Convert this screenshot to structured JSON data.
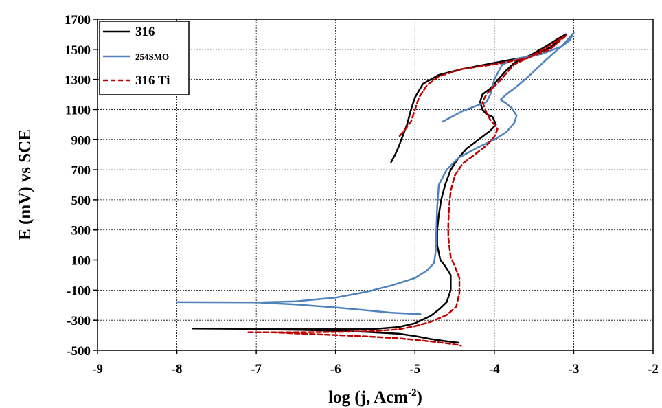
{
  "chart_data": {
    "type": "line",
    "xlabel": "log (j, Acm",
    "xlabel_sup": "-2",
    "xlabel_close": ")",
    "ylabel": "E (mV) vs SCE",
    "xlim": [
      -9,
      -2
    ],
    "ylim": [
      -500,
      1700
    ],
    "xticks": [
      "-9",
      "-8",
      "-7",
      "-6",
      "-5",
      "-4",
      "-3",
      "-2"
    ],
    "yticks": [
      "-500",
      "-300",
      "-100",
      "100",
      "300",
      "500",
      "700",
      "900",
      "1100",
      "1300",
      "1500",
      "1700"
    ],
    "grid": true,
    "legend_position": "top-left",
    "series": [
      {
        "name": "316",
        "color": "#000000",
        "dash": "solid",
        "points": [
          [
            -7.8,
            -355
          ],
          [
            -7.0,
            -358
          ],
          [
            -6.0,
            -360
          ],
          [
            -5.5,
            -358
          ],
          [
            -5.2,
            -345
          ],
          [
            -5.0,
            -320
          ],
          [
            -4.8,
            -270
          ],
          [
            -4.7,
            -230
          ],
          [
            -4.6,
            -180
          ],
          [
            -4.55,
            -100
          ],
          [
            -4.55,
            0
          ],
          [
            -4.62,
            60
          ],
          [
            -4.68,
            100
          ],
          [
            -4.72,
            200
          ],
          [
            -4.72,
            300
          ],
          [
            -4.7,
            400
          ],
          [
            -4.67,
            500
          ],
          [
            -4.62,
            600
          ],
          [
            -4.55,
            700
          ],
          [
            -4.45,
            780
          ],
          [
            -4.35,
            840
          ],
          [
            -4.25,
            880
          ],
          [
            -4.15,
            920
          ],
          [
            -4.05,
            960
          ],
          [
            -3.98,
            1000
          ],
          [
            -4.02,
            1050
          ],
          [
            -4.1,
            1070
          ],
          [
            -4.15,
            1100
          ],
          [
            -4.18,
            1150
          ],
          [
            -4.15,
            1200
          ],
          [
            -4.05,
            1240
          ],
          [
            -3.95,
            1300
          ],
          [
            -3.85,
            1360
          ],
          [
            -3.75,
            1410
          ],
          [
            -3.55,
            1460
          ],
          [
            -3.35,
            1520
          ],
          [
            -3.2,
            1570
          ],
          [
            -3.1,
            1600
          ],
          null,
          [
            -3.1,
            1600
          ],
          [
            -3.3,
            1510
          ],
          [
            -3.6,
            1450
          ],
          [
            -4.0,
            1410
          ],
          [
            -4.4,
            1370
          ],
          [
            -4.7,
            1330
          ],
          [
            -4.9,
            1270
          ],
          [
            -5.0,
            1180
          ],
          [
            -5.05,
            1100
          ],
          [
            -5.1,
            1000
          ],
          [
            -5.15,
            930
          ],
          [
            -5.2,
            860
          ],
          [
            -5.25,
            800
          ],
          [
            -5.3,
            750
          ],
          null,
          [
            -7.0,
            -360
          ],
          [
            -6.4,
            -365
          ],
          [
            -6.0,
            -370
          ],
          [
            -5.6,
            -378
          ],
          [
            -5.2,
            -390
          ],
          [
            -5.0,
            -405
          ],
          [
            -4.8,
            -425
          ],
          [
            -4.6,
            -440
          ],
          [
            -4.45,
            -450
          ]
        ]
      },
      {
        "name": "254SMO",
        "color": "#4f81bd",
        "dash": "solid",
        "points": [
          [
            -8.0,
            -180
          ],
          [
            -7.0,
            -182
          ],
          [
            -6.5,
            -175
          ],
          [
            -6.0,
            -150
          ],
          [
            -5.6,
            -110
          ],
          [
            -5.3,
            -70
          ],
          [
            -5.0,
            -20
          ],
          [
            -4.85,
            30
          ],
          [
            -4.76,
            80
          ],
          [
            -4.74,
            150
          ],
          [
            -4.73,
            300
          ],
          [
            -4.72,
            450
          ],
          [
            -4.7,
            600
          ],
          [
            -4.6,
            700
          ],
          [
            -4.45,
            780
          ],
          [
            -4.2,
            850
          ],
          [
            -4.0,
            900
          ],
          [
            -3.85,
            950
          ],
          [
            -3.75,
            1010
          ],
          [
            -3.72,
            1060
          ],
          [
            -3.78,
            1110
          ],
          [
            -3.85,
            1140
          ],
          [
            -3.92,
            1165
          ],
          [
            -3.85,
            1200
          ],
          [
            -3.7,
            1260
          ],
          [
            -3.55,
            1330
          ],
          [
            -3.35,
            1430
          ],
          [
            -3.2,
            1500
          ],
          [
            -3.05,
            1560
          ],
          [
            -3.0,
            1610
          ],
          [
            -3.15,
            1520
          ],
          [
            -3.4,
            1470
          ],
          [
            -3.7,
            1440
          ],
          [
            -3.9,
            1400
          ],
          [
            -4.0,
            1300
          ],
          [
            -4.05,
            1200
          ],
          [
            -4.1,
            1150
          ],
          [
            -4.4,
            1090
          ],
          [
            -4.65,
            1020
          ],
          null,
          [
            -7.0,
            -182
          ],
          [
            -6.5,
            -195
          ],
          [
            -6.0,
            -215
          ],
          [
            -5.6,
            -235
          ],
          [
            -5.3,
            -250
          ],
          [
            -5.0,
            -258
          ],
          [
            -4.93,
            -260
          ]
        ]
      },
      {
        "name": "316 Ti",
        "color": "#c00000",
        "dash": "dashed",
        "points": [
          [
            -7.1,
            -380
          ],
          [
            -6.5,
            -380
          ],
          [
            -6.0,
            -378
          ],
          [
            -5.5,
            -372
          ],
          [
            -5.2,
            -360
          ],
          [
            -5.0,
            -340
          ],
          [
            -4.8,
            -310
          ],
          [
            -4.6,
            -265
          ],
          [
            -4.48,
            -210
          ],
          [
            -4.44,
            -120
          ],
          [
            -4.44,
            -20
          ],
          [
            -4.5,
            60
          ],
          [
            -4.55,
            120
          ],
          [
            -4.58,
            250
          ],
          [
            -4.58,
            350
          ],
          [
            -4.57,
            450
          ],
          [
            -4.55,
            560
          ],
          [
            -4.5,
            660
          ],
          [
            -4.4,
            740
          ],
          [
            -4.25,
            800
          ],
          [
            -4.1,
            860
          ],
          [
            -4.0,
            920
          ],
          [
            -3.96,
            970
          ],
          [
            -4.0,
            1000
          ],
          [
            -4.05,
            1030
          ],
          [
            -4.1,
            1080
          ],
          [
            -4.15,
            1150
          ],
          [
            -4.1,
            1200
          ],
          [
            -4.05,
            1230
          ],
          [
            -3.95,
            1280
          ],
          [
            -3.85,
            1340
          ],
          [
            -3.75,
            1400
          ],
          [
            -3.55,
            1450
          ],
          [
            -3.35,
            1510
          ],
          [
            -3.2,
            1560
          ],
          [
            -3.1,
            1590
          ],
          null,
          [
            -3.1,
            1590
          ],
          [
            -3.3,
            1500
          ],
          [
            -3.6,
            1440
          ],
          [
            -4.0,
            1400
          ],
          [
            -4.4,
            1370
          ],
          [
            -4.7,
            1320
          ],
          [
            -4.85,
            1260
          ],
          [
            -4.95,
            1180
          ],
          [
            -5.0,
            1100
          ],
          [
            -5.05,
            1020
          ],
          [
            -5.15,
            950
          ],
          [
            -5.2,
            920
          ],
          null,
          [
            -6.8,
            -380
          ],
          [
            -6.4,
            -390
          ],
          [
            -6.0,
            -398
          ],
          [
            -5.6,
            -408
          ],
          [
            -5.2,
            -420
          ],
          [
            -4.9,
            -435
          ],
          [
            -4.65,
            -450
          ],
          [
            -4.45,
            -465
          ],
          [
            -4.42,
            -470
          ]
        ]
      }
    ]
  }
}
